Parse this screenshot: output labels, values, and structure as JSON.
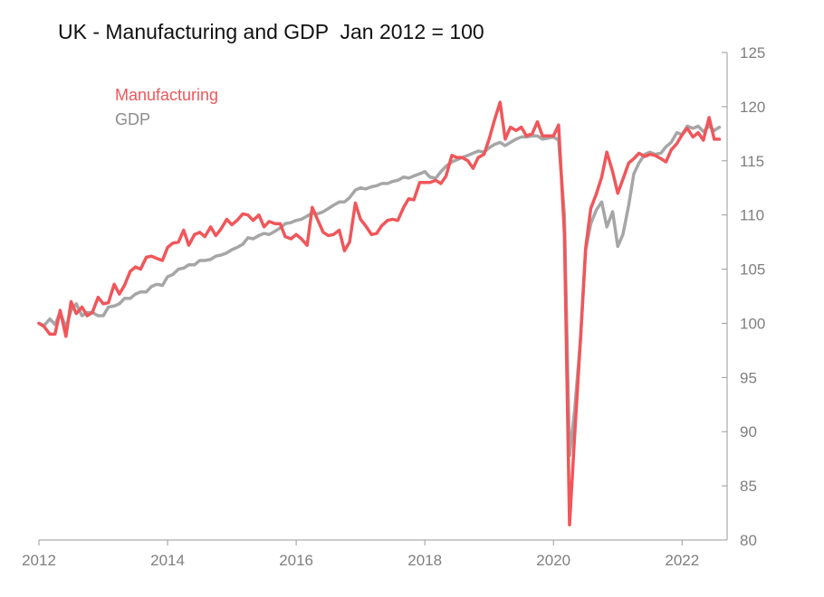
{
  "chart_data": {
    "type": "line",
    "title": "UK - Manufacturing and GDP  Jan 2012 = 100",
    "xlabel": "",
    "ylabel": "",
    "x_ticks": [
      "2012",
      "2014",
      "2016",
      "2018",
      "2020",
      "2022"
    ],
    "y_ticks": [
      "80",
      "85",
      "90",
      "95",
      "100",
      "105",
      "110",
      "115",
      "120",
      "125"
    ],
    "xlim": [
      2012.0,
      2022.7
    ],
    "ylim": [
      80,
      125
    ],
    "y_axis_side": "right",
    "grid": false,
    "legend_position": "top-left",
    "series": [
      {
        "name": "Manufacturing",
        "color": "#f0565a",
        "points": [
          [
            2012.0,
            100.0
          ],
          [
            2012.08,
            99.7
          ],
          [
            2012.17,
            99.0
          ],
          [
            2012.25,
            99.0
          ],
          [
            2012.33,
            101.2
          ],
          [
            2012.42,
            98.8
          ],
          [
            2012.5,
            102.0
          ],
          [
            2012.58,
            100.9
          ],
          [
            2012.67,
            101.5
          ],
          [
            2012.75,
            100.7
          ],
          [
            2012.83,
            101.0
          ],
          [
            2012.92,
            102.4
          ],
          [
            2013.0,
            101.8
          ],
          [
            2013.08,
            101.9
          ],
          [
            2013.17,
            103.6
          ],
          [
            2013.25,
            102.7
          ],
          [
            2013.33,
            103.5
          ],
          [
            2013.42,
            104.8
          ],
          [
            2013.5,
            105.2
          ],
          [
            2013.58,
            105.0
          ],
          [
            2013.67,
            106.1
          ],
          [
            2013.75,
            106.2
          ],
          [
            2013.83,
            106.0
          ],
          [
            2013.92,
            105.8
          ],
          [
            2014.0,
            107.0
          ],
          [
            2014.08,
            107.4
          ],
          [
            2014.17,
            107.5
          ],
          [
            2014.25,
            108.6
          ],
          [
            2014.33,
            107.2
          ],
          [
            2014.42,
            108.2
          ],
          [
            2014.5,
            108.4
          ],
          [
            2014.58,
            108.0
          ],
          [
            2014.67,
            108.9
          ],
          [
            2014.75,
            108.1
          ],
          [
            2014.83,
            108.7
          ],
          [
            2014.92,
            109.6
          ],
          [
            2015.0,
            109.1
          ],
          [
            2015.08,
            109.5
          ],
          [
            2015.17,
            110.1
          ],
          [
            2015.25,
            110.0
          ],
          [
            2015.33,
            109.5
          ],
          [
            2015.42,
            110.0
          ],
          [
            2015.5,
            108.9
          ],
          [
            2015.58,
            109.4
          ],
          [
            2015.67,
            109.2
          ],
          [
            2015.75,
            109.2
          ],
          [
            2015.83,
            108.0
          ],
          [
            2015.92,
            107.8
          ],
          [
            2016.0,
            108.2
          ],
          [
            2016.08,
            107.8
          ],
          [
            2016.17,
            107.2
          ],
          [
            2016.25,
            110.7
          ],
          [
            2016.33,
            109.6
          ],
          [
            2016.42,
            108.4
          ],
          [
            2016.5,
            108.1
          ],
          [
            2016.58,
            108.2
          ],
          [
            2016.67,
            108.6
          ],
          [
            2016.75,
            106.7
          ],
          [
            2016.83,
            107.5
          ],
          [
            2016.92,
            111.1
          ],
          [
            2017.0,
            109.6
          ],
          [
            2017.08,
            109.0
          ],
          [
            2017.17,
            108.2
          ],
          [
            2017.25,
            108.3
          ],
          [
            2017.33,
            109.0
          ],
          [
            2017.42,
            109.5
          ],
          [
            2017.5,
            109.6
          ],
          [
            2017.58,
            109.5
          ],
          [
            2017.67,
            110.7
          ],
          [
            2017.75,
            111.5
          ],
          [
            2017.83,
            111.4
          ],
          [
            2017.92,
            113.0
          ],
          [
            2018.0,
            113.0
          ],
          [
            2018.08,
            113.0
          ],
          [
            2018.17,
            113.2
          ],
          [
            2018.25,
            112.9
          ],
          [
            2018.33,
            113.6
          ],
          [
            2018.42,
            115.5
          ],
          [
            2018.5,
            115.3
          ],
          [
            2018.58,
            115.3
          ],
          [
            2018.67,
            115.0
          ],
          [
            2018.75,
            114.3
          ],
          [
            2018.83,
            115.3
          ],
          [
            2018.92,
            115.6
          ],
          [
            2019.0,
            117.0
          ],
          [
            2019.08,
            118.7
          ],
          [
            2019.17,
            120.4
          ],
          [
            2019.25,
            117.0
          ],
          [
            2019.33,
            118.1
          ],
          [
            2019.42,
            117.8
          ],
          [
            2019.5,
            118.1
          ],
          [
            2019.58,
            117.3
          ],
          [
            2019.67,
            117.5
          ],
          [
            2019.75,
            118.6
          ],
          [
            2019.83,
            117.3
          ],
          [
            2019.92,
            117.3
          ],
          [
            2020.0,
            117.3
          ],
          [
            2020.08,
            118.3
          ],
          [
            2020.17,
            108.3
          ],
          [
            2020.25,
            81.4
          ],
          [
            2020.33,
            89.7
          ],
          [
            2020.42,
            98.5
          ],
          [
            2020.5,
            106.9
          ],
          [
            2020.58,
            110.6
          ],
          [
            2020.67,
            112.0
          ],
          [
            2020.75,
            113.5
          ],
          [
            2020.83,
            115.8
          ],
          [
            2020.92,
            114.0
          ],
          [
            2021.0,
            112.0
          ],
          [
            2021.08,
            113.3
          ],
          [
            2021.17,
            114.8
          ],
          [
            2021.25,
            115.2
          ],
          [
            2021.33,
            115.7
          ],
          [
            2021.42,
            115.4
          ],
          [
            2021.5,
            115.6
          ],
          [
            2021.58,
            115.5
          ],
          [
            2021.67,
            115.2
          ],
          [
            2021.75,
            114.9
          ],
          [
            2021.83,
            116.0
          ],
          [
            2021.92,
            116.6
          ],
          [
            2022.0,
            117.4
          ],
          [
            2022.08,
            118.0
          ],
          [
            2022.17,
            117.2
          ],
          [
            2022.25,
            117.6
          ],
          [
            2022.33,
            116.9
          ],
          [
            2022.42,
            119.0
          ],
          [
            2022.5,
            117.0
          ],
          [
            2022.58,
            117.0
          ]
        ]
      },
      {
        "name": "GDP",
        "color": "#a6a6a6",
        "points": [
          [
            2012.0,
            100.0
          ],
          [
            2012.08,
            99.8
          ],
          [
            2012.17,
            100.4
          ],
          [
            2012.25,
            99.9
          ],
          [
            2012.33,
            101.0
          ],
          [
            2012.42,
            99.6
          ],
          [
            2012.5,
            101.2
          ],
          [
            2012.58,
            101.8
          ],
          [
            2012.67,
            100.7
          ],
          [
            2012.75,
            101.0
          ],
          [
            2012.83,
            101.0
          ],
          [
            2012.92,
            100.7
          ],
          [
            2013.0,
            100.7
          ],
          [
            2013.08,
            101.5
          ],
          [
            2013.17,
            101.6
          ],
          [
            2013.25,
            101.8
          ],
          [
            2013.33,
            102.3
          ],
          [
            2013.42,
            102.3
          ],
          [
            2013.5,
            102.7
          ],
          [
            2013.58,
            102.9
          ],
          [
            2013.67,
            102.9
          ],
          [
            2013.75,
            103.4
          ],
          [
            2013.83,
            103.6
          ],
          [
            2013.92,
            103.5
          ],
          [
            2014.0,
            104.3
          ],
          [
            2014.08,
            104.5
          ],
          [
            2014.17,
            105.0
          ],
          [
            2014.25,
            105.1
          ],
          [
            2014.33,
            105.4
          ],
          [
            2014.42,
            105.4
          ],
          [
            2014.5,
            105.8
          ],
          [
            2014.58,
            105.8
          ],
          [
            2014.67,
            105.9
          ],
          [
            2014.75,
            106.2
          ],
          [
            2014.83,
            106.3
          ],
          [
            2014.92,
            106.5
          ],
          [
            2015.0,
            106.8
          ],
          [
            2015.08,
            107.0
          ],
          [
            2015.17,
            107.3
          ],
          [
            2015.25,
            107.9
          ],
          [
            2015.33,
            107.8
          ],
          [
            2015.42,
            108.1
          ],
          [
            2015.5,
            108.3
          ],
          [
            2015.58,
            108.2
          ],
          [
            2015.67,
            108.5
          ],
          [
            2015.75,
            108.8
          ],
          [
            2015.83,
            109.2
          ],
          [
            2015.92,
            109.3
          ],
          [
            2016.0,
            109.5
          ],
          [
            2016.08,
            109.6
          ],
          [
            2016.17,
            109.9
          ],
          [
            2016.25,
            110.2
          ],
          [
            2016.33,
            110.1
          ],
          [
            2016.42,
            110.3
          ],
          [
            2016.5,
            110.6
          ],
          [
            2016.58,
            110.9
          ],
          [
            2016.67,
            111.2
          ],
          [
            2016.75,
            111.2
          ],
          [
            2016.83,
            111.6
          ],
          [
            2016.92,
            112.3
          ],
          [
            2017.0,
            112.5
          ],
          [
            2017.08,
            112.4
          ],
          [
            2017.17,
            112.6
          ],
          [
            2017.25,
            112.7
          ],
          [
            2017.33,
            112.9
          ],
          [
            2017.42,
            112.9
          ],
          [
            2017.5,
            113.1
          ],
          [
            2017.58,
            113.2
          ],
          [
            2017.67,
            113.5
          ],
          [
            2017.75,
            113.4
          ],
          [
            2017.83,
            113.6
          ],
          [
            2017.92,
            113.8
          ],
          [
            2018.0,
            114.0
          ],
          [
            2018.08,
            113.5
          ],
          [
            2018.17,
            113.4
          ],
          [
            2018.25,
            114.0
          ],
          [
            2018.33,
            114.5
          ],
          [
            2018.42,
            114.9
          ],
          [
            2018.5,
            115.1
          ],
          [
            2018.58,
            115.3
          ],
          [
            2018.67,
            115.5
          ],
          [
            2018.75,
            115.7
          ],
          [
            2018.83,
            115.9
          ],
          [
            2018.92,
            115.8
          ],
          [
            2019.0,
            116.2
          ],
          [
            2019.08,
            116.5
          ],
          [
            2019.17,
            116.7
          ],
          [
            2019.25,
            116.4
          ],
          [
            2019.33,
            116.7
          ],
          [
            2019.42,
            117.0
          ],
          [
            2019.5,
            117.2
          ],
          [
            2019.58,
            117.2
          ],
          [
            2019.67,
            117.3
          ],
          [
            2019.75,
            117.3
          ],
          [
            2019.83,
            117.0
          ],
          [
            2019.92,
            117.1
          ],
          [
            2020.0,
            117.2
          ],
          [
            2020.08,
            116.9
          ],
          [
            2020.17,
            110.0
          ],
          [
            2020.25,
            87.8
          ],
          [
            2020.33,
            92.0
          ],
          [
            2020.42,
            98.5
          ],
          [
            2020.5,
            106.7
          ],
          [
            2020.58,
            109.2
          ],
          [
            2020.67,
            110.5
          ],
          [
            2020.75,
            111.2
          ],
          [
            2020.83,
            108.9
          ],
          [
            2020.92,
            110.3
          ],
          [
            2021.0,
            107.1
          ],
          [
            2021.08,
            108.2
          ],
          [
            2021.17,
            110.9
          ],
          [
            2021.25,
            113.8
          ],
          [
            2021.33,
            114.8
          ],
          [
            2021.42,
            115.6
          ],
          [
            2021.5,
            115.8
          ],
          [
            2021.58,
            115.6
          ],
          [
            2021.67,
            115.7
          ],
          [
            2021.75,
            116.3
          ],
          [
            2021.83,
            116.7
          ],
          [
            2021.92,
            117.6
          ],
          [
            2022.0,
            117.4
          ],
          [
            2022.08,
            118.2
          ],
          [
            2022.17,
            118.0
          ],
          [
            2022.25,
            118.2
          ],
          [
            2022.33,
            117.7
          ],
          [
            2022.42,
            118.2
          ],
          [
            2022.5,
            117.8
          ],
          [
            2022.58,
            118.1
          ]
        ]
      }
    ]
  }
}
